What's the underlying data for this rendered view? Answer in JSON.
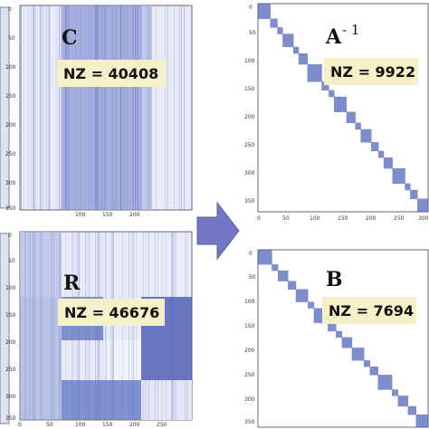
{
  "panels": {
    "C": {
      "letter": "C",
      "nz": "NZ = 40408",
      "yticks": [
        "0",
        "50",
        "100",
        "150",
        "200",
        "250",
        "300",
        "350"
      ],
      "xticks": [
        "100",
        "150",
        "200"
      ]
    },
    "R": {
      "letter": "R",
      "nz": "NZ = 46676",
      "yticks": [
        "0",
        "50",
        "100",
        "150",
        "200",
        "250",
        "300",
        "350"
      ],
      "xticks": [
        "0",
        "50",
        "100",
        "150",
        "200",
        "250"
      ]
    },
    "Ainv": {
      "letter": "A",
      "superscript": "- 1",
      "nz": "NZ = 9922",
      "yticks": [
        "0",
        "50",
        "100",
        "150",
        "200",
        "250",
        "300",
        "350"
      ],
      "xticks": [
        "0",
        "50",
        "100",
        "150",
        "200",
        "250",
        "300"
      ]
    },
    "B": {
      "letter": "B",
      "nz": "NZ = 7694",
      "yticks": [
        "0",
        "50",
        "100",
        "150",
        "200",
        "250",
        "300",
        "350"
      ]
    }
  },
  "colors": {
    "matrix": "#5a6ec0",
    "arrow": "#7376c4",
    "nz_box": "#f5f0c8"
  }
}
